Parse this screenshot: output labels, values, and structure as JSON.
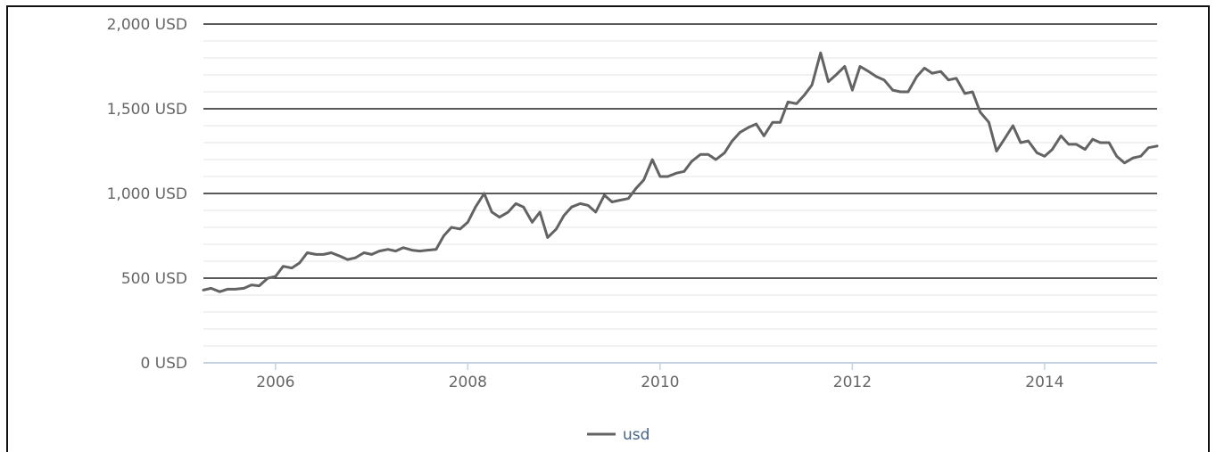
{
  "chart_data": {
    "type": "line",
    "title": "",
    "xlabel": "",
    "ylabel": "",
    "ylim": [
      0,
      2000
    ],
    "xlim": [
      2005.25,
      2015.17
    ],
    "y_ticks": [
      0,
      500,
      1000,
      1500,
      2000
    ],
    "y_tick_labels": [
      "0 USD",
      "500 USD",
      "1,000 USD",
      "1,500 USD",
      "2,000 USD"
    ],
    "x_ticks": [
      2006,
      2008,
      2010,
      2012,
      2014
    ],
    "x_tick_labels": [
      "2006",
      "2008",
      "2010",
      "2012",
      "2014"
    ],
    "grid": "horizontal major and minor",
    "legend": {
      "position": "bottom-center",
      "entries": [
        "usd"
      ]
    },
    "colors": {
      "line": "#636363",
      "major_grid": "#222222",
      "minor_grid": "#e6e6e6",
      "x_axis": "#c5d3e0"
    },
    "series": [
      {
        "name": "usd",
        "x": [
          2005.25,
          2005.33,
          2005.42,
          2005.5,
          2005.58,
          2005.67,
          2005.75,
          2005.83,
          2005.92,
          2006.0,
          2006.08,
          2006.17,
          2006.25,
          2006.33,
          2006.42,
          2006.5,
          2006.58,
          2006.67,
          2006.75,
          2006.83,
          2006.92,
          2007.0,
          2007.08,
          2007.17,
          2007.25,
          2007.33,
          2007.42,
          2007.5,
          2007.58,
          2007.67,
          2007.75,
          2007.83,
          2007.92,
          2008.0,
          2008.08,
          2008.17,
          2008.25,
          2008.33,
          2008.42,
          2008.5,
          2008.58,
          2008.67,
          2008.75,
          2008.83,
          2008.92,
          2009.0,
          2009.08,
          2009.17,
          2009.25,
          2009.33,
          2009.42,
          2009.5,
          2009.58,
          2009.67,
          2009.75,
          2009.83,
          2009.92,
          2010.0,
          2010.08,
          2010.17,
          2010.25,
          2010.33,
          2010.42,
          2010.5,
          2010.58,
          2010.67,
          2010.75,
          2010.83,
          2010.92,
          2011.0,
          2011.08,
          2011.17,
          2011.25,
          2011.33,
          2011.42,
          2011.5,
          2011.58,
          2011.67,
          2011.75,
          2011.83,
          2011.92,
          2012.0,
          2012.08,
          2012.17,
          2012.25,
          2012.33,
          2012.42,
          2012.5,
          2012.58,
          2012.67,
          2012.75,
          2012.83,
          2012.92,
          2013.0,
          2013.08,
          2013.17,
          2013.25,
          2013.33,
          2013.42,
          2013.5,
          2013.58,
          2013.67,
          2013.75,
          2013.83,
          2013.92,
          2014.0,
          2014.08,
          2014.17,
          2014.25,
          2014.33,
          2014.42,
          2014.5,
          2014.58,
          2014.67,
          2014.75,
          2014.83,
          2014.92,
          2015.0,
          2015.08,
          2015.17
        ],
        "values": [
          430,
          440,
          420,
          435,
          435,
          440,
          460,
          455,
          500,
          510,
          570,
          560,
          590,
          650,
          640,
          640,
          650,
          630,
          610,
          620,
          650,
          640,
          660,
          670,
          660,
          680,
          665,
          660,
          665,
          670,
          750,
          800,
          790,
          830,
          920,
          1000,
          890,
          860,
          890,
          940,
          920,
          830,
          890,
          740,
          790,
          870,
          920,
          940,
          930,
          890,
          990,
          950,
          960,
          970,
          1030,
          1080,
          1200,
          1100,
          1100,
          1120,
          1130,
          1190,
          1230,
          1230,
          1200,
          1240,
          1310,
          1360,
          1390,
          1410,
          1340,
          1420,
          1420,
          1540,
          1530,
          1580,
          1640,
          1830,
          1660,
          1700,
          1750,
          1610,
          1750,
          1720,
          1690,
          1670,
          1610,
          1600,
          1600,
          1690,
          1740,
          1710,
          1720,
          1670,
          1680,
          1590,
          1600,
          1480,
          1420,
          1250,
          1320,
          1400,
          1300,
          1310,
          1240,
          1220,
          1260,
          1340,
          1290,
          1290,
          1260,
          1320,
          1300,
          1300,
          1220,
          1180,
          1210,
          1220,
          1270,
          1280
        ]
      }
    ]
  }
}
